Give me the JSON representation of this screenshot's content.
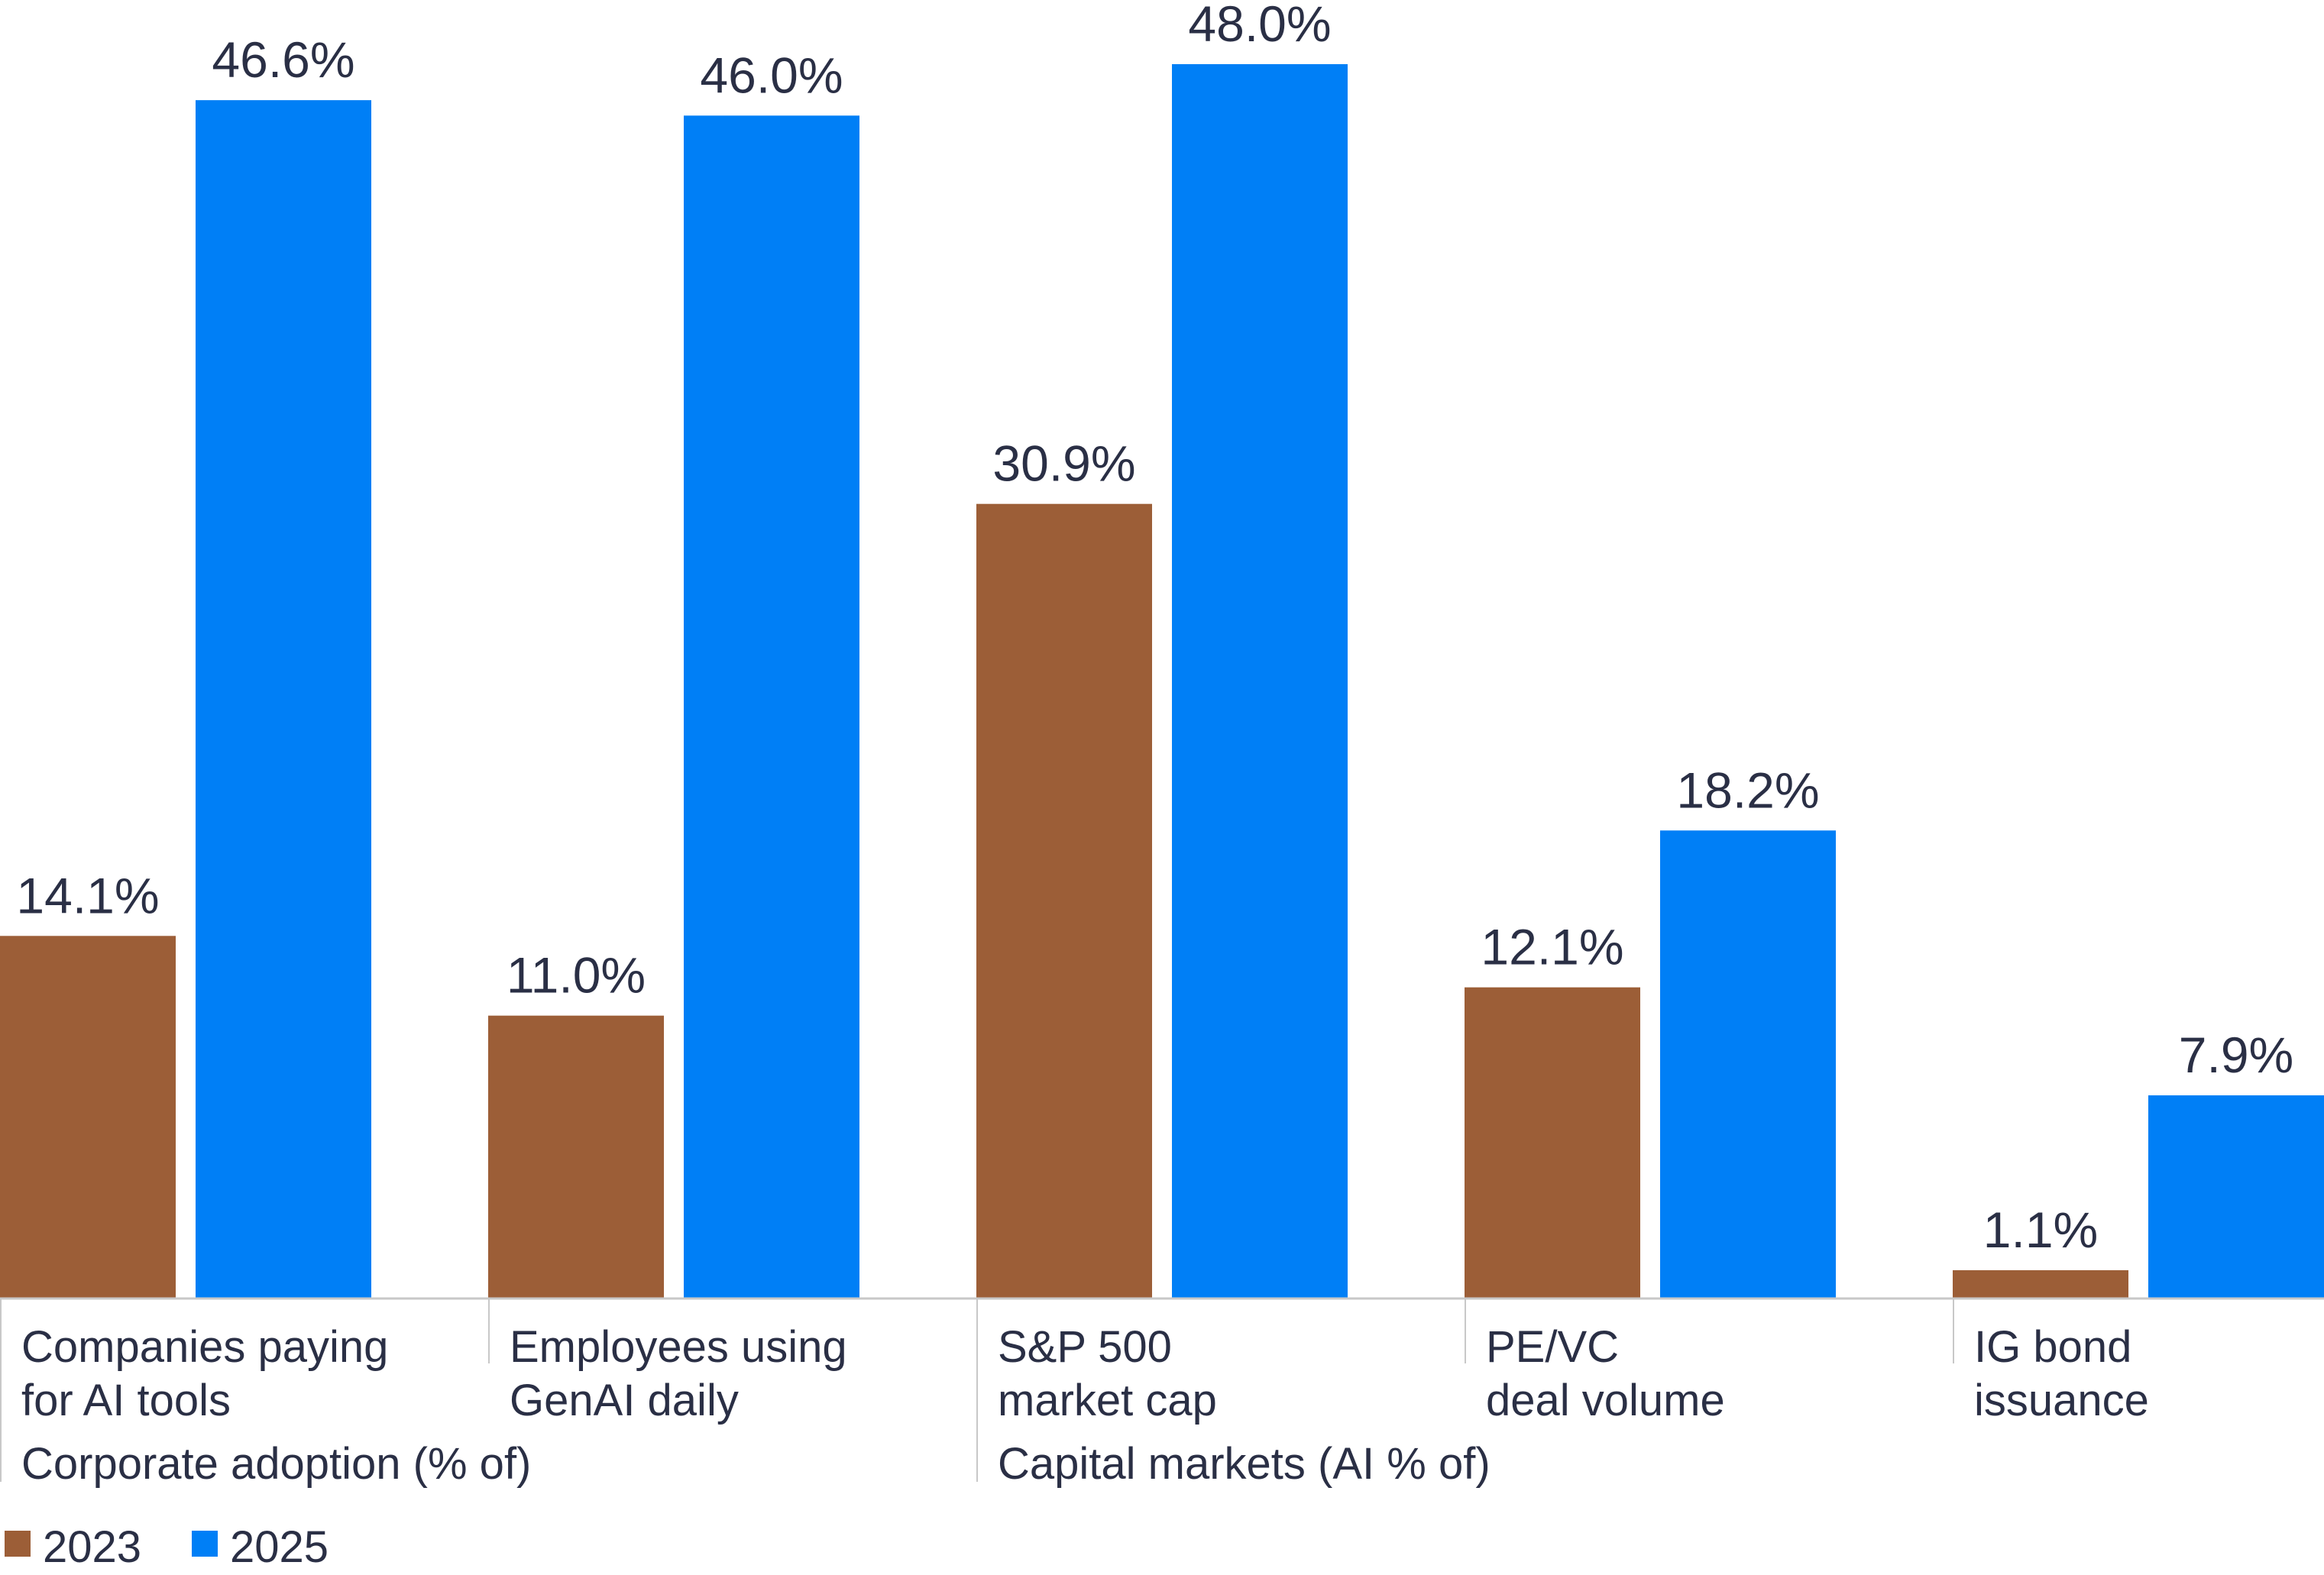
{
  "chart_data": {
    "type": "bar",
    "categories": [
      [
        "Companies paying",
        "for AI tools"
      ],
      [
        "Employees using",
        "GenAI daily"
      ],
      [
        "S&P 500",
        "market cap"
      ],
      [
        "PE/VC",
        "deal volume"
      ],
      [
        "IG bond",
        "issuance"
      ]
    ],
    "series": [
      {
        "name": "2023",
        "color": "#9c5e37",
        "values": [
          14.1,
          11.0,
          30.9,
          12.1,
          1.1
        ],
        "labels": [
          "14.1%",
          "11.0%",
          "30.9%",
          "12.1%",
          "1.1%"
        ]
      },
      {
        "name": "2025",
        "color": "#007ff6",
        "values": [
          46.6,
          46.0,
          48.0,
          18.2,
          7.9
        ],
        "labels": [
          "46.6%",
          "46.0%",
          "48.0%",
          "18.2%",
          "7.9%"
        ]
      }
    ],
    "groups": [
      {
        "label": "Corporate adoption (% of)",
        "categories": [
          0,
          1
        ]
      },
      {
        "label": "Capital markets (AI % of)",
        "categories": [
          2,
          3,
          4
        ]
      }
    ],
    "ylim": [
      0,
      48
    ],
    "grid": false,
    "legend": "bottom-left",
    "title": "",
    "xlabel": "",
    "ylabel": ""
  }
}
